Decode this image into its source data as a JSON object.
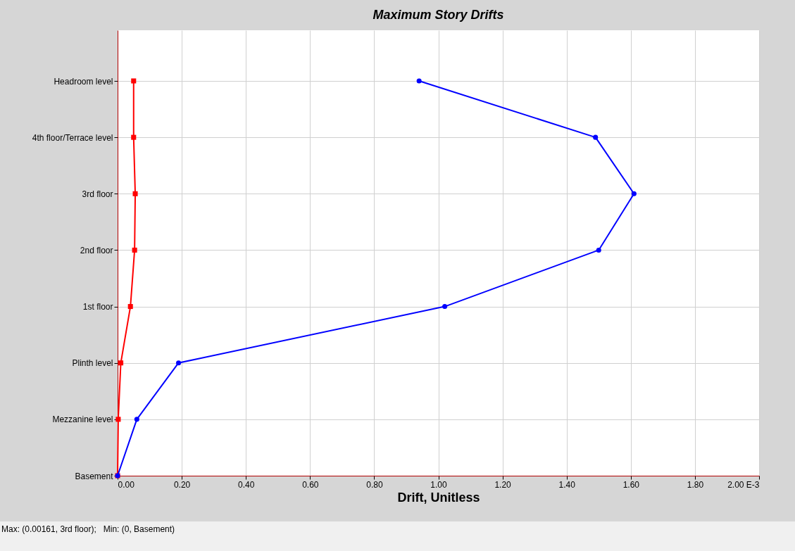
{
  "chart_data": {
    "type": "line",
    "title": "Maximum Story Drifts",
    "xlabel": "Drift, Unitless",
    "orientation": "horizontal",
    "categories": [
      "Headroom level",
      "4th floor/Terrace level",
      "3rd floor",
      "2nd floor",
      "1st floor",
      "Plinth level",
      "Mezzanine level",
      "Basement"
    ],
    "series": [
      {
        "color": "#ff0000",
        "marker": "square",
        "values": [
          0.05,
          0.05,
          0.055,
          0.053,
          0.04,
          0.01,
          0.002,
          0
        ]
      },
      {
        "color": "#0000ff",
        "marker": "circle",
        "values": [
          0.94,
          1.49,
          1.61,
          1.5,
          1.02,
          0.19,
          0.06,
          0
        ]
      }
    ],
    "xlim": [
      0,
      2
    ],
    "xticks": [
      {
        "value": 0,
        "label": "0.00"
      },
      {
        "value": 0.2,
        "label": "0.20"
      },
      {
        "value": 0.4,
        "label": "0.40"
      },
      {
        "value": 0.6,
        "label": "0.60"
      },
      {
        "value": 0.8,
        "label": "0.80"
      },
      {
        "value": 1,
        "label": "1.00"
      },
      {
        "value": 1.2,
        "label": "1.20"
      },
      {
        "value": 1.4,
        "label": "1.40"
      },
      {
        "value": 1.6,
        "label": "1.60"
      },
      {
        "value": 1.8,
        "label": "1.80"
      },
      {
        "value": 2,
        "label": "2.00 E-3"
      }
    ],
    "grid": true,
    "annotations": [
      "Max: (0.00161, 3rd floor);   Min: (0, Basement)"
    ]
  }
}
